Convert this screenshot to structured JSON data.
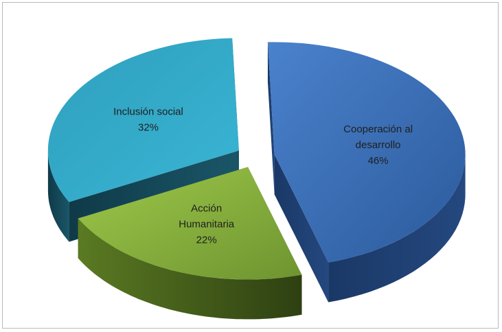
{
  "chart_data": {
    "type": "pie",
    "style": "3d-exploded",
    "title": "",
    "slices": [
      {
        "label": "Cooperación al desarrollo",
        "label_lines": [
          "Cooperación al",
          "desarrollo"
        ],
        "value": 46,
        "percent_label": "46%",
        "color": "#3c6eb4"
      },
      {
        "label": "Acción Humanitaria",
        "label_lines": [
          "Acción",
          "Humanitaria"
        ],
        "value": 22,
        "percent_label": "22%",
        "color": "#8fb43c"
      },
      {
        "label": "Inclusión social",
        "label_lines": [
          "Inclusión social"
        ],
        "value": 32,
        "percent_label": "32%",
        "color": "#36a3c2"
      }
    ],
    "legend": "none"
  }
}
